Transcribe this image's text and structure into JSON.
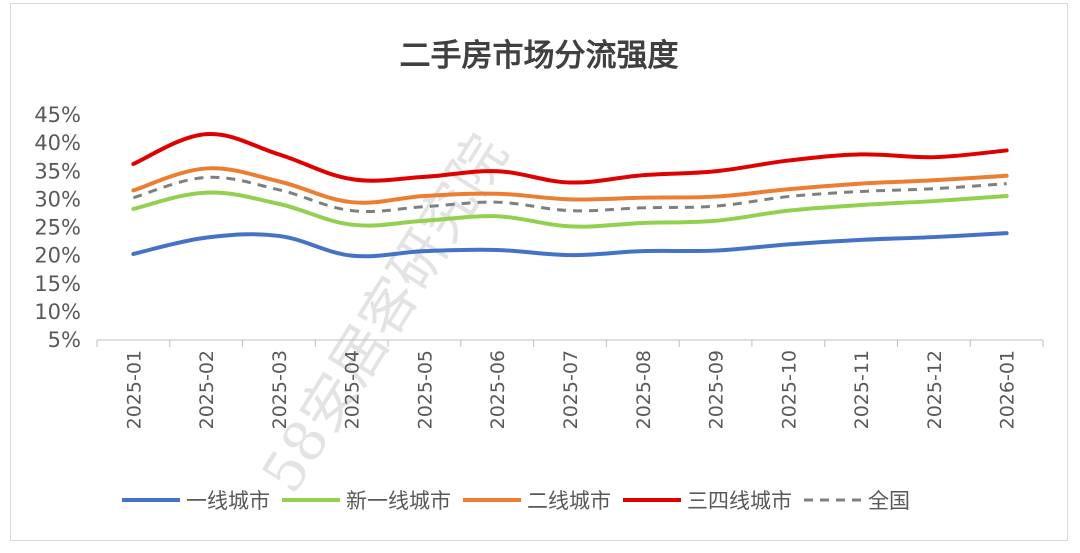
{
  "chart_data": {
    "type": "line",
    "title": "二手房市场分流强度",
    "categories": [
      "2025-01",
      "2025-02",
      "2025-03",
      "2025-04",
      "2025-05",
      "2025-06",
      "2025-07",
      "2025-08",
      "2025-09",
      "2025-10",
      "2025-11",
      "2025-12",
      "2026-01"
    ],
    "y_ticks": [
      "5%",
      "10%",
      "15%",
      "20%",
      "25%",
      "30%",
      "35%",
      "40%",
      "45%"
    ],
    "ylim": [
      5,
      45
    ],
    "legend_position": "bottom",
    "grid": false,
    "series": [
      {
        "name": "一线城市",
        "color": "#4472c4",
        "dashed": false,
        "values": [
          20.3,
          23.2,
          23.5,
          20.0,
          20.8,
          21.0,
          20.1,
          20.8,
          20.9,
          22.0,
          22.8,
          23.3,
          24.0
        ]
      },
      {
        "name": "新一线城市",
        "color": "#92d050",
        "dashed": false,
        "values": [
          28.3,
          31.2,
          29.2,
          25.5,
          26.2,
          27.0,
          25.2,
          25.8,
          26.2,
          28.0,
          29.0,
          29.7,
          30.6
        ]
      },
      {
        "name": "二线城市",
        "color": "#ed7d31",
        "dashed": false,
        "values": [
          31.6,
          35.5,
          33.2,
          29.5,
          30.6,
          31.0,
          30.0,
          30.3,
          30.5,
          31.8,
          32.8,
          33.4,
          34.2
        ]
      },
      {
        "name": "三四线城市",
        "color": "#e00000",
        "dashed": false,
        "values": [
          36.3,
          41.6,
          38.0,
          33.6,
          34.0,
          35.0,
          33.0,
          34.3,
          35.0,
          36.9,
          38.0,
          37.5,
          38.7
        ]
      },
      {
        "name": "全国",
        "color": "#7f7f7f",
        "dashed": true,
        "values": [
          30.3,
          33.9,
          31.7,
          28.0,
          28.7,
          29.5,
          28.0,
          28.5,
          28.8,
          30.5,
          31.4,
          31.9,
          32.8
        ]
      }
    ]
  },
  "watermark": "58安居客研究院"
}
